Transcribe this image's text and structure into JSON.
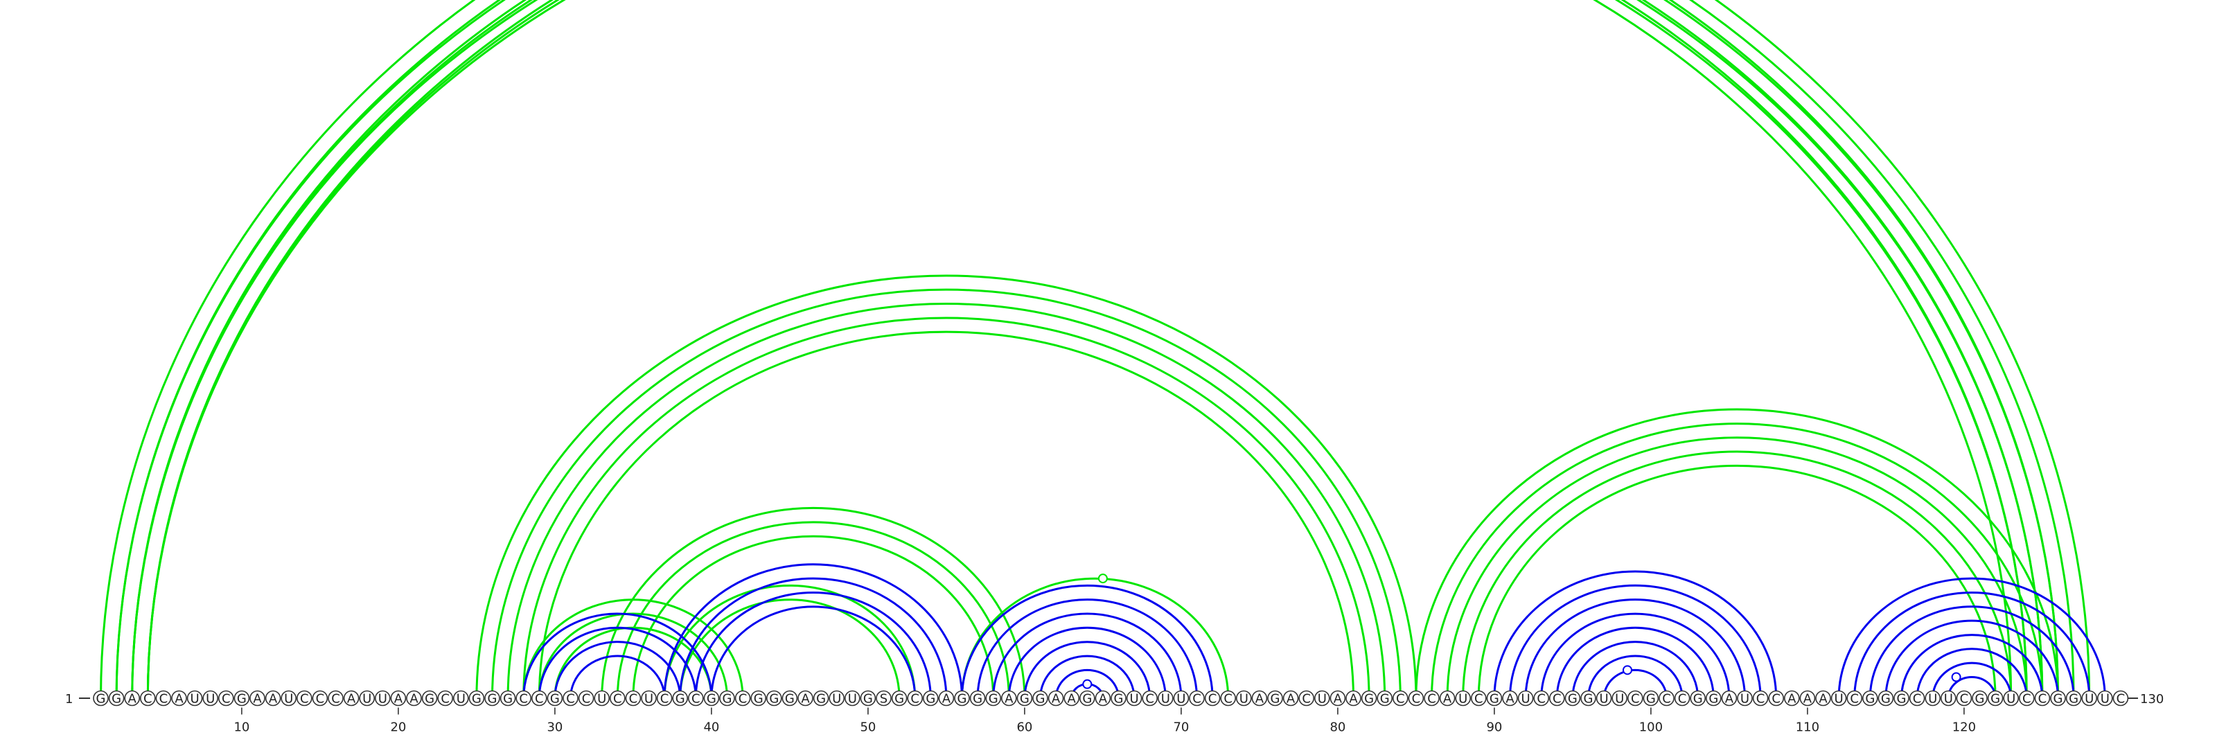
{
  "chart_data": {
    "type": "arc-diagram",
    "sequence": "GGACCAUUCGAAUCCCAUUAAGCUGGGCCGCCUCCUCGCGGCGGGAGUUGSGCGAGGGAGGAAGAGUCUUCCCUAGACUAAGGCCCAUCGAUCCGGUUCGCCGGAUCCAAAUCGGGCUUCGGUCCGGUUC",
    "start_label": "1",
    "end_label": "130",
    "tick_labels": [
      "10",
      "20",
      "30",
      "40",
      "50",
      "60",
      "70",
      "80",
      "90",
      "100",
      "110",
      "120"
    ],
    "tick_positions": [
      10,
      20,
      30,
      40,
      50,
      60,
      70,
      80,
      90,
      100,
      110,
      120
    ],
    "colors": {
      "blue": "#0000ee",
      "green": "#00e600"
    },
    "groups": [
      {
        "color": "green",
        "i": 1,
        "j": 128,
        "count": 4,
        "step": 1
      },
      {
        "color": "green",
        "i": 2,
        "j": 126,
        "count": 3,
        "step": 1
      },
      {
        "color": "green",
        "i": 3,
        "j": 124,
        "count": 2,
        "step": 1
      },
      {
        "color": "green",
        "i": 25,
        "j": 85,
        "count": 5,
        "step": 1
      },
      {
        "color": "green",
        "i": 33,
        "j": 60,
        "count": 3,
        "step": 1
      },
      {
        "color": "green",
        "i": 28,
        "j": 42,
        "count": 3,
        "step": 1
      },
      {
        "color": "green",
        "i": 37,
        "j": 53,
        "count": 2,
        "step": 1
      },
      {
        "color": "green",
        "i": 56,
        "j": 73,
        "count": 1,
        "step": 1
      },
      {
        "color": "green",
        "i": 85,
        "j": 126,
        "count": 5,
        "step": 1
      },
      {
        "color": "blue",
        "i": 28,
        "j": 40,
        "count": 4,
        "step": 1
      },
      {
        "color": "blue",
        "i": 37,
        "j": 56,
        "count": 4,
        "step": 1
      },
      {
        "color": "blue",
        "i": 56,
        "j": 72,
        "count": 8,
        "step": 1
      },
      {
        "color": "blue",
        "i": 90,
        "j": 108,
        "count": 8,
        "step": 1
      },
      {
        "color": "blue",
        "i": 112,
        "j": 129,
        "count": 8,
        "step": 1
      }
    ],
    "markers": [
      {
        "color": "green",
        "pos": 65
      },
      {
        "color": "blue",
        "pos": 64
      },
      {
        "color": "blue",
        "pos": 98.5
      },
      {
        "color": "blue",
        "pos": 119.5
      }
    ]
  }
}
